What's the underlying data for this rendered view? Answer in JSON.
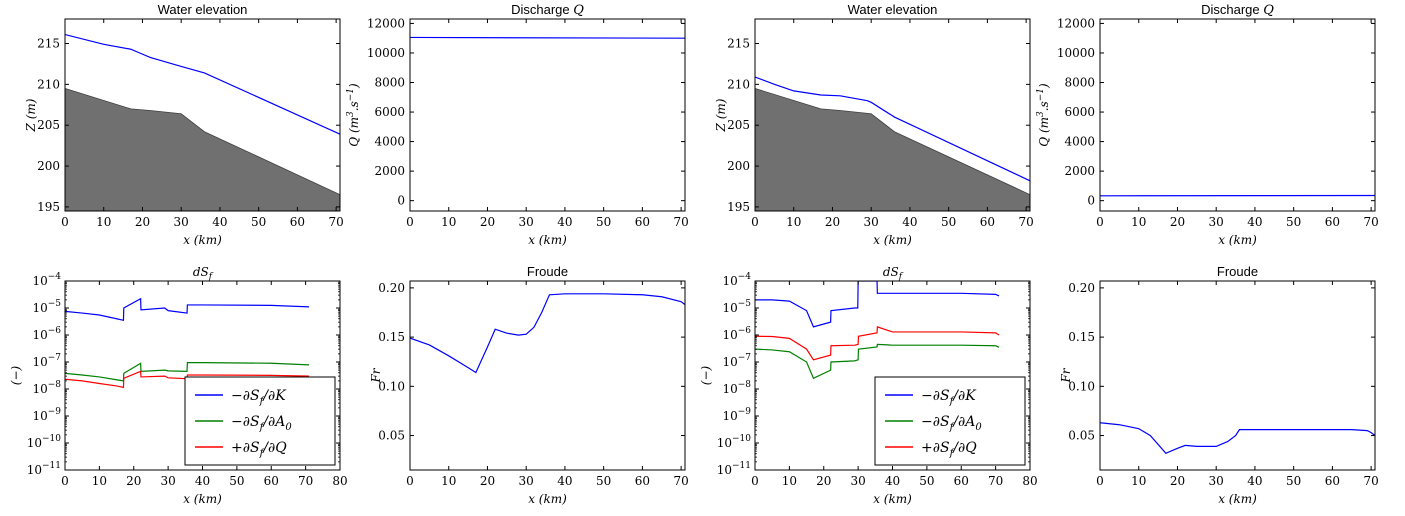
{
  "chart_data": [
    {
      "id": "p1",
      "type": "line",
      "title": "Water elevation",
      "xlabel": "x (km)",
      "ylabel": "Z (m)",
      "xlim": [
        0,
        71
      ],
      "ylim": [
        194.5,
        218
      ],
      "log": false,
      "xticks": [
        0,
        10,
        20,
        30,
        40,
        50,
        60,
        70
      ],
      "xtick_labels": [
        "0",
        "10",
        "20",
        "30",
        "40",
        "50",
        "60",
        "70"
      ],
      "yticks": [
        195,
        200,
        205,
        210,
        215
      ],
      "ytick_labels": [
        "195",
        "200",
        "205",
        "210",
        "215"
      ],
      "bed": {
        "color": "#707070",
        "x": [
          0,
          17,
          22,
          30,
          36,
          71
        ],
        "y": [
          209.5,
          207,
          206.8,
          206.4,
          204.2,
          196.5
        ]
      },
      "series": [
        {
          "color": "#0000ff",
          "x": [
            0,
            10,
            17,
            19,
            22,
            30,
            36,
            71
          ],
          "y": [
            216.1,
            214.9,
            214.3,
            213.9,
            213.3,
            212.2,
            211.4,
            203.9
          ]
        }
      ]
    },
    {
      "id": "p2",
      "type": "line",
      "title": "Discharge Q",
      "xlabel": "x (km)",
      "ylabel": "Q (m3.s-1)",
      "xlim": [
        0,
        71
      ],
      "ylim": [
        -700,
        12300
      ],
      "log": false,
      "xticks": [
        0,
        10,
        20,
        30,
        40,
        50,
        60,
        70
      ],
      "xtick_labels": [
        "0",
        "10",
        "20",
        "30",
        "40",
        "50",
        "60",
        "70"
      ],
      "yticks": [
        0,
        2000,
        4000,
        6000,
        8000,
        10000,
        12000
      ],
      "ytick_labels": [
        "0",
        "2000",
        "4000",
        "6000",
        "8000",
        "10000",
        "12000"
      ],
      "series": [
        {
          "color": "#0000ff",
          "x": [
            0,
            71
          ],
          "y": [
            11050,
            11000
          ]
        }
      ]
    },
    {
      "id": "p3",
      "type": "line",
      "title": "Water elevation",
      "xlabel": "x (km)",
      "ylabel": "Z (m)",
      "xlim": [
        0,
        71
      ],
      "ylim": [
        194.5,
        218
      ],
      "log": false,
      "xticks": [
        0,
        10,
        20,
        30,
        40,
        50,
        60,
        70
      ],
      "xtick_labels": [
        "0",
        "10",
        "20",
        "30",
        "40",
        "50",
        "60",
        "70"
      ],
      "yticks": [
        195,
        200,
        205,
        210,
        215
      ],
      "ytick_labels": [
        "195",
        "200",
        "205",
        "210",
        "215"
      ],
      "bed": {
        "color": "#707070",
        "x": [
          0,
          17,
          22,
          30,
          36,
          71
        ],
        "y": [
          209.5,
          207,
          206.8,
          206.4,
          204.2,
          196.5
        ]
      },
      "series": [
        {
          "color": "#0000ff",
          "x": [
            0,
            5,
            10,
            17,
            22,
            29,
            30,
            36,
            71
          ],
          "y": [
            210.9,
            210,
            209.2,
            208.7,
            208.6,
            208,
            207.8,
            206,
            198.2
          ]
        }
      ]
    },
    {
      "id": "p4",
      "type": "line",
      "title": "Discharge Q",
      "xlabel": "x (km)",
      "ylabel": "Q (m3.s-1)",
      "xlim": [
        0,
        71
      ],
      "ylim": [
        -700,
        12300
      ],
      "log": false,
      "xticks": [
        0,
        10,
        20,
        30,
        40,
        50,
        60,
        70
      ],
      "xtick_labels": [
        "0",
        "10",
        "20",
        "30",
        "40",
        "50",
        "60",
        "70"
      ],
      "yticks": [
        0,
        2000,
        4000,
        6000,
        8000,
        10000,
        12000
      ],
      "ytick_labels": [
        "0",
        "2000",
        "4000",
        "6000",
        "8000",
        "10000",
        "12000"
      ],
      "series": [
        {
          "color": "#0000ff",
          "x": [
            0,
            71
          ],
          "y": [
            330,
            350
          ]
        }
      ]
    },
    {
      "id": "p5",
      "type": "line",
      "title": "dSf",
      "xlabel": "x (km)",
      "ylabel": "(−)",
      "xlim": [
        0,
        80
      ],
      "ylim": [
        1e-11,
        0.0001
      ],
      "log": true,
      "xticks": [
        0,
        10,
        20,
        30,
        40,
        50,
        60,
        70,
        80
      ],
      "xtick_labels": [
        "0",
        "10",
        "20",
        "30",
        "40",
        "50",
        "60",
        "70",
        "80"
      ],
      "yticks": [
        1e-11,
        1e-10,
        1e-09,
        1e-08,
        1e-07,
        1e-06,
        1e-05,
        0.0001
      ],
      "ytick_labels": [
        "10-11",
        "10-10",
        "10-9",
        "10-8",
        "10-7",
        "10-6",
        "10-5",
        "10-4"
      ],
      "series": [
        {
          "name": "−∂Sf/∂K",
          "color": "#0000ff",
          "x": [
            0,
            5,
            10,
            15,
            17,
            17.1,
            22,
            22.1,
            29,
            30,
            35.5,
            35.6,
            40,
            60,
            71
          ],
          "y": [
            7.5e-06,
            6.5e-06,
            5.5e-06,
            4e-06,
            3.5e-06,
            1e-05,
            2.2e-05,
            8.5e-06,
            1e-05,
            8e-06,
            6.5e-06,
            1.3e-05,
            1.3e-05,
            1.25e-05,
            1.1e-05
          ]
        },
        {
          "name": "−∂Sf/∂A0",
          "color": "#008000",
          "x": [
            0,
            5,
            10,
            15,
            17,
            17.1,
            22,
            22.1,
            29,
            30,
            35.5,
            35.6,
            40,
            60,
            71
          ],
          "y": [
            3.8e-08,
            3.3e-08,
            2.8e-08,
            2.2e-08,
            2e-08,
            3.8e-08,
            9e-08,
            4.5e-08,
            5e-08,
            4.7e-08,
            4.5e-08,
            9.5e-08,
            9.5e-08,
            9e-08,
            7.8e-08
          ]
        },
        {
          "name": "+∂Sf/∂Q",
          "color": "#ff0000",
          "x": [
            0,
            5,
            10,
            15,
            17,
            17.1,
            22,
            22.1,
            29,
            30,
            35.5,
            35.6,
            40,
            60,
            71
          ],
          "y": [
            2.3e-08,
            2e-08,
            1.6e-08,
            1.3e-08,
            1.15e-08,
            2.5e-08,
            4.5e-08,
            2.8e-08,
            3e-08,
            2.6e-08,
            2.4e-08,
            3.3e-08,
            3.3e-08,
            3.2e-08,
            3e-08
          ]
        }
      ],
      "legend": {
        "position": "lower-right"
      }
    },
    {
      "id": "p6",
      "type": "line",
      "title": "Froude",
      "xlabel": "x (km)",
      "ylabel": "Fr",
      "xlim": [
        0,
        71
      ],
      "ylim": [
        0.015,
        0.207
      ],
      "log": false,
      "xticks": [
        0,
        10,
        20,
        30,
        40,
        50,
        60,
        70
      ],
      "xtick_labels": [
        "0",
        "10",
        "20",
        "30",
        "40",
        "50",
        "60",
        "70"
      ],
      "yticks": [
        0.05,
        0.1,
        0.15,
        0.2
      ],
      "ytick_labels": [
        "0.05",
        "0.10",
        "0.15",
        "0.20"
      ],
      "series": [
        {
          "color": "#0000ff",
          "x": [
            0,
            5,
            10,
            15,
            17,
            20,
            22,
            25,
            28,
            30,
            32,
            34,
            36,
            40,
            50,
            60,
            65,
            70,
            71
          ],
          "y": [
            0.149,
            0.142,
            0.131,
            0.119,
            0.114,
            0.14,
            0.158,
            0.154,
            0.152,
            0.153,
            0.16,
            0.175,
            0.193,
            0.194,
            0.194,
            0.193,
            0.191,
            0.186,
            0.183
          ]
        }
      ]
    },
    {
      "id": "p7",
      "type": "line",
      "title": "dSf",
      "xlabel": "x (km)",
      "ylabel": "(−)",
      "xlim": [
        0,
        80
      ],
      "ylim": [
        1e-11,
        0.0001
      ],
      "log": true,
      "xticks": [
        0,
        10,
        20,
        30,
        40,
        50,
        60,
        70,
        80
      ],
      "xtick_labels": [
        "0",
        "10",
        "20",
        "30",
        "40",
        "50",
        "60",
        "70",
        "80"
      ],
      "yticks": [
        1e-11,
        1e-10,
        1e-09,
        1e-08,
        1e-07,
        1e-06,
        1e-05,
        0.0001
      ],
      "ytick_labels": [
        "10-11",
        "10-10",
        "10-9",
        "10-8",
        "10-7",
        "10-6",
        "10-5",
        "10-4"
      ],
      "series": [
        {
          "name": "−∂Sf/∂K",
          "color": "#0000ff",
          "x": [
            0,
            5,
            10,
            15,
            17,
            22,
            22.1,
            29,
            29.9,
            30,
            35.5,
            35.6,
            40,
            60,
            70,
            71
          ],
          "y": [
            2e-05,
            2e-05,
            1.8e-05,
            8e-06,
            2e-06,
            3e-06,
            8e-06,
            1e-05,
            1e-05,
            0.0001,
            0.0001,
            3.5e-05,
            3.5e-05,
            3.5e-05,
            3.2e-05,
            2.8e-05
          ]
        },
        {
          "name": "−∂Sf/∂A0",
          "color": "#008000",
          "x": [
            0,
            5,
            10,
            15,
            17,
            22,
            22.1,
            29,
            30,
            30.1,
            35.5,
            35.6,
            40,
            60,
            70,
            71
          ],
          "y": [
            3e-07,
            2.8e-07,
            2.4e-07,
            1e-07,
            2.5e-08,
            5e-08,
            1e-07,
            1.1e-07,
            1.2e-07,
            3e-07,
            3.6e-07,
            4.5e-07,
            4.2e-07,
            4.2e-07,
            4e-07,
            3.5e-07
          ]
        },
        {
          "name": "+∂Sf/∂Q",
          "color": "#ff0000",
          "x": [
            0,
            5,
            10,
            15,
            17,
            22,
            22.1,
            29,
            30,
            30.1,
            35.5,
            35.6,
            40,
            60,
            70,
            71
          ],
          "y": [
            9e-07,
            8.8e-07,
            7.5e-07,
            3e-07,
            1.2e-07,
            1.8e-07,
            4e-07,
            4.2e-07,
            4.5e-07,
            9e-07,
            1.2e-06,
            2e-06,
            1.3e-06,
            1.3e-06,
            1.2e-06,
            1e-06
          ]
        }
      ],
      "legend": {
        "position": "lower-right"
      }
    },
    {
      "id": "p8",
      "type": "line",
      "title": "Froude",
      "xlabel": "x (km)",
      "ylabel": "Fr",
      "xlim": [
        0,
        71
      ],
      "ylim": [
        0.015,
        0.207
      ],
      "log": false,
      "xticks": [
        0,
        10,
        20,
        30,
        40,
        50,
        60,
        70
      ],
      "xtick_labels": [
        "0",
        "10",
        "20",
        "30",
        "40",
        "50",
        "60",
        "70"
      ],
      "yticks": [
        0.05,
        0.1,
        0.15,
        0.2
      ],
      "ytick_labels": [
        "0.05",
        "0.10",
        "0.15",
        "0.20"
      ],
      "series": [
        {
          "color": "#0000ff",
          "x": [
            0,
            5,
            10,
            13,
            17,
            20,
            22,
            25,
            30,
            33,
            35,
            36,
            40,
            50,
            60,
            65,
            69,
            70,
            71
          ],
          "y": [
            0.063,
            0.061,
            0.057,
            0.05,
            0.032,
            0.037,
            0.04,
            0.039,
            0.039,
            0.044,
            0.05,
            0.056,
            0.056,
            0.056,
            0.056,
            0.056,
            0.055,
            0.053,
            0.05
          ]
        }
      ]
    }
  ]
}
